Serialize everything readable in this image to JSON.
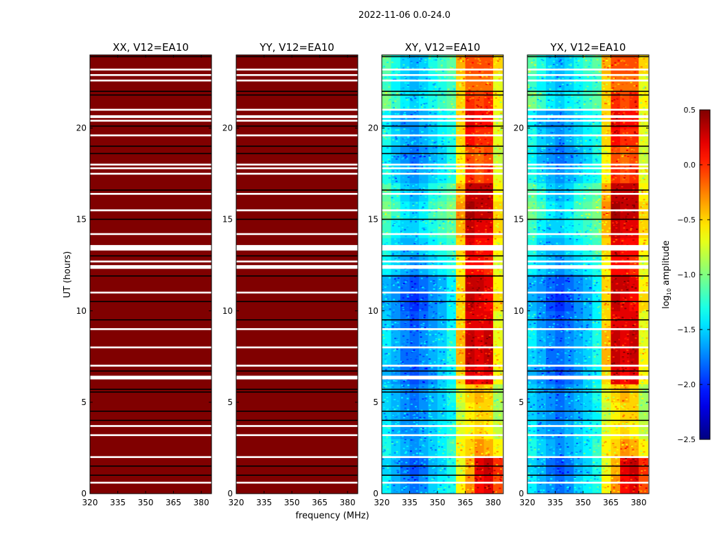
{
  "chart_data": {
    "type": "heatmap",
    "title": "2022-11-06 0.0-24.0",
    "xlabel": "frequency (MHz)",
    "ylabel": "UT (hours)",
    "xlim": [
      320,
      385.5
    ],
    "ylim": [
      0,
      24
    ],
    "xticks": [
      "320",
      "335",
      "350",
      "365",
      "380"
    ],
    "xtick_values": [
      320,
      335,
      350,
      365,
      380
    ],
    "yticks": [
      "0",
      "5",
      "10",
      "15",
      "20"
    ],
    "ytick_values": [
      0,
      5,
      10,
      15,
      20
    ],
    "colorbar": {
      "label": "log10 amplitude",
      "label_main": "log",
      "label_sub": "10",
      "label_rest": " amplitude",
      "range": [
        -2.5,
        0.5
      ],
      "ticks": [
        "0.5",
        "0.0",
        "−0.5",
        "−1.0",
        "−1.5",
        "−2.0",
        "−2.5"
      ],
      "tick_values": [
        0.5,
        0.0,
        -0.5,
        -1.0,
        -1.5,
        -2.0,
        -2.5
      ],
      "colormap": "jet"
    },
    "flagged_hours_white": [
      [
        23.15,
        23.25
      ],
      [
        22.85,
        22.95
      ],
      [
        22.55,
        22.65
      ],
      [
        20.95,
        21.05
      ],
      [
        20.55,
        20.7
      ],
      [
        20.35,
        20.45
      ],
      [
        19.55,
        19.65
      ],
      [
        17.95,
        18.05
      ],
      [
        17.75,
        17.85
      ],
      [
        17.45,
        17.55
      ],
      [
        16.35,
        16.45
      ],
      [
        15.45,
        15.55
      ],
      [
        14.15,
        14.25
      ],
      [
        13.3,
        13.6
      ],
      [
        12.65,
        12.75
      ],
      [
        12.3,
        12.5
      ],
      [
        10.95,
        11.05
      ],
      [
        8.95,
        9.05
      ],
      [
        7.95,
        8.05
      ],
      [
        6.95,
        7.05
      ],
      [
        6.25,
        6.45
      ],
      [
        3.65,
        3.75
      ],
      [
        3.15,
        3.25
      ],
      [
        1.95,
        2.05
      ],
      [
        0.55,
        0.65
      ]
    ],
    "no_data_hours_black": [
      23.9,
      22.0,
      21.8,
      20.1,
      19.0,
      18.6,
      16.6,
      15.0,
      13.0,
      11.9,
      10.5,
      9.5,
      6.7,
      5.7,
      5.55,
      4.5,
      4.0,
      1.5,
      1.0
    ],
    "freq_bins_mhz": [
      322.5,
      327.5,
      332.5,
      337.5,
      342.5,
      347.5,
      352.5,
      357.5,
      362.5,
      367.5,
      372.5,
      377.5,
      382.5
    ],
    "hour_bins": [
      0.5,
      1.5,
      2.5,
      3.5,
      4.5,
      5.5,
      6.5,
      7.5,
      8.5,
      9.5,
      10.5,
      11.5,
      12.5,
      13.5,
      14.5,
      15.5,
      16.5,
      17.5,
      18.5,
      19.5,
      20.5,
      21.5,
      22.5,
      23.5
    ],
    "panels": [
      {
        "title": "XX, V12=EA10",
        "uniform_value": 0.5
      },
      {
        "title": "YY, V12=EA10",
        "uniform_value": 0.5
      },
      {
        "title": "XY, V12=EA10",
        "values": [
          [
            -1.4,
            -1.6,
            -1.7,
            -1.8,
            -1.7,
            -1.5,
            -1.4,
            -1.3,
            -0.6,
            -0.3,
            0.1,
            0.2,
            -0.1
          ],
          [
            -1.5,
            -1.6,
            -1.8,
            -1.9,
            -1.8,
            -1.6,
            -1.5,
            -1.3,
            -0.7,
            -0.4,
            0.2,
            0.3,
            0.0
          ],
          [
            -1.3,
            -1.5,
            -1.6,
            -1.7,
            -1.6,
            -1.5,
            -1.4,
            -1.2,
            -0.6,
            -0.5,
            -0.3,
            -0.4,
            -0.6
          ],
          [
            -1.4,
            -1.6,
            -1.7,
            -1.7,
            -1.6,
            -1.5,
            -1.4,
            -1.3,
            -0.7,
            -0.6,
            -0.5,
            -0.6,
            -0.8
          ],
          [
            -1.5,
            -1.6,
            -1.7,
            -1.8,
            -1.7,
            -1.6,
            -1.5,
            -1.4,
            -0.8,
            -0.6,
            -0.5,
            -0.5,
            -0.9
          ],
          [
            -1.5,
            -1.6,
            -1.7,
            -1.8,
            -1.7,
            -1.6,
            -1.5,
            -1.3,
            -0.7,
            -0.5,
            -0.4,
            -0.5,
            -0.9
          ],
          [
            -1.6,
            -1.7,
            -1.8,
            -1.9,
            -1.8,
            -1.7,
            -1.5,
            -1.4,
            -0.5,
            0.2,
            0.1,
            0.2,
            -0.6
          ],
          [
            -1.5,
            -1.6,
            -1.8,
            -1.8,
            -1.7,
            -1.6,
            -1.5,
            -1.3,
            -0.4,
            0.3,
            0.2,
            0.3,
            -0.6
          ],
          [
            -1.4,
            -1.6,
            -1.7,
            -1.8,
            -1.7,
            -1.6,
            -1.5,
            -1.3,
            -0.4,
            0.3,
            0.2,
            0.3,
            -0.7
          ],
          [
            -1.5,
            -1.7,
            -1.8,
            -1.9,
            -1.8,
            -1.7,
            -1.6,
            -1.4,
            -0.5,
            0.2,
            0.2,
            0.2,
            -0.7
          ],
          [
            -1.6,
            -1.7,
            -1.9,
            -2.0,
            -1.9,
            -1.7,
            -1.6,
            -1.4,
            -0.5,
            0.3,
            0.2,
            0.1,
            -0.5
          ],
          [
            -1.6,
            -1.7,
            -1.8,
            -1.9,
            -1.8,
            -1.7,
            -1.6,
            -1.4,
            -0.5,
            0.3,
            0.3,
            0.2,
            -0.6
          ],
          [
            -1.4,
            -1.5,
            -1.6,
            -1.7,
            -1.6,
            -1.5,
            -1.4,
            -1.3,
            -0.6,
            0.1,
            0.1,
            0.0,
            -0.7
          ],
          [
            -1.3,
            -1.5,
            -1.6,
            -1.6,
            -1.5,
            -1.4,
            -1.3,
            -1.2,
            -0.5,
            0.2,
            0.1,
            0.1,
            -0.6
          ],
          [
            -1.2,
            -1.4,
            -1.5,
            -1.5,
            -1.4,
            -1.3,
            -1.2,
            -1.1,
            -0.4,
            0.3,
            0.2,
            0.2,
            -0.5
          ],
          [
            -1.0,
            -1.2,
            -1.4,
            -1.5,
            -1.4,
            -1.2,
            -1.1,
            -1.0,
            -0.3,
            0.4,
            0.3,
            0.3,
            -0.5
          ],
          [
            -1.1,
            -1.3,
            -1.5,
            -1.6,
            -1.5,
            -1.3,
            -1.2,
            -1.1,
            -0.4,
            0.3,
            0.3,
            0.3,
            -0.6
          ],
          [
            -1.3,
            -1.5,
            -1.6,
            -1.7,
            -1.6,
            -1.5,
            -1.4,
            -1.3,
            -0.6,
            0.0,
            -0.1,
            0.0,
            -0.7
          ],
          [
            -1.4,
            -1.6,
            -1.7,
            -1.8,
            -1.7,
            -1.6,
            -1.5,
            -1.3,
            -0.6,
            -0.1,
            -0.2,
            -0.1,
            -0.8
          ],
          [
            -1.3,
            -1.5,
            -1.6,
            -1.7,
            -1.6,
            -1.5,
            -1.4,
            -1.3,
            -0.5,
            0.1,
            0.0,
            0.0,
            -0.7
          ],
          [
            -1.4,
            -1.6,
            -1.7,
            -1.7,
            -1.6,
            -1.5,
            -1.4,
            -1.3,
            -0.5,
            0.2,
            0.1,
            0.1,
            -0.7
          ],
          [
            -1.0,
            -1.2,
            -1.4,
            -1.5,
            -1.4,
            -1.3,
            -1.2,
            -1.1,
            -0.5,
            0.0,
            -0.1,
            0.0,
            -0.6
          ],
          [
            -1.2,
            -1.4,
            -1.5,
            -1.6,
            -1.5,
            -1.4,
            -1.3,
            -1.2,
            -0.5,
            -0.2,
            -0.2,
            -0.2,
            -0.7
          ],
          [
            -1.1,
            -1.3,
            -1.5,
            -1.6,
            -1.5,
            -1.3,
            -1.2,
            -1.1,
            -0.4,
            -0.1,
            -0.1,
            -0.1,
            -0.5
          ]
        ]
      },
      {
        "title": "YX, V12=EA10",
        "values": [
          [
            -1.4,
            -1.6,
            -1.7,
            -1.8,
            -1.7,
            -1.5,
            -1.4,
            -1.3,
            -0.6,
            -0.3,
            0.1,
            0.2,
            -0.1
          ],
          [
            -1.5,
            -1.6,
            -1.8,
            -1.9,
            -1.8,
            -1.6,
            -1.5,
            -1.3,
            -0.7,
            -0.4,
            0.2,
            0.3,
            0.0
          ],
          [
            -1.3,
            -1.5,
            -1.6,
            -1.7,
            -1.6,
            -1.5,
            -1.4,
            -1.2,
            -0.6,
            -0.5,
            -0.3,
            -0.4,
            -0.6
          ],
          [
            -1.4,
            -1.6,
            -1.7,
            -1.7,
            -1.6,
            -1.5,
            -1.4,
            -1.3,
            -0.7,
            -0.6,
            -0.5,
            -0.6,
            -0.8
          ],
          [
            -1.5,
            -1.6,
            -1.7,
            -1.8,
            -1.7,
            -1.6,
            -1.5,
            -1.4,
            -0.8,
            -0.6,
            -0.5,
            -0.5,
            -0.9
          ],
          [
            -1.5,
            -1.6,
            -1.7,
            -1.8,
            -1.7,
            -1.6,
            -1.5,
            -1.3,
            -0.7,
            -0.5,
            -0.4,
            -0.5,
            -0.9
          ],
          [
            -1.6,
            -1.7,
            -1.8,
            -1.9,
            -1.8,
            -1.7,
            -1.5,
            -1.4,
            -0.5,
            0.2,
            0.1,
            0.2,
            -0.6
          ],
          [
            -1.5,
            -1.6,
            -1.8,
            -1.8,
            -1.7,
            -1.6,
            -1.5,
            -1.3,
            -0.4,
            0.3,
            0.2,
            0.3,
            -0.6
          ],
          [
            -1.4,
            -1.6,
            -1.7,
            -1.8,
            -1.7,
            -1.6,
            -1.5,
            -1.3,
            -0.4,
            0.3,
            0.2,
            0.3,
            -0.7
          ],
          [
            -1.5,
            -1.7,
            -1.8,
            -1.9,
            -1.8,
            -1.7,
            -1.6,
            -1.4,
            -0.5,
            0.2,
            0.2,
            0.2,
            -0.7
          ],
          [
            -1.6,
            -1.7,
            -1.9,
            -2.0,
            -1.9,
            -1.7,
            -1.6,
            -1.4,
            -0.5,
            0.3,
            0.2,
            0.1,
            -0.5
          ],
          [
            -1.6,
            -1.7,
            -1.8,
            -1.9,
            -1.8,
            -1.7,
            -1.6,
            -1.4,
            -0.5,
            0.3,
            0.3,
            0.2,
            -0.6
          ],
          [
            -1.4,
            -1.5,
            -1.6,
            -1.7,
            -1.6,
            -1.5,
            -1.4,
            -1.3,
            -0.6,
            0.1,
            0.1,
            0.0,
            -0.7
          ],
          [
            -1.3,
            -1.5,
            -1.6,
            -1.6,
            -1.5,
            -1.4,
            -1.3,
            -1.2,
            -0.5,
            0.2,
            0.1,
            0.1,
            -0.6
          ],
          [
            -1.2,
            -1.4,
            -1.5,
            -1.5,
            -1.4,
            -1.3,
            -1.2,
            -1.1,
            -0.4,
            0.3,
            0.2,
            0.2,
            -0.5
          ],
          [
            -1.0,
            -1.2,
            -1.4,
            -1.5,
            -1.4,
            -1.2,
            -1.1,
            -1.0,
            -0.3,
            0.4,
            0.3,
            0.3,
            -0.5
          ],
          [
            -1.1,
            -1.3,
            -1.5,
            -1.6,
            -1.5,
            -1.3,
            -1.2,
            -1.1,
            -0.4,
            0.3,
            0.3,
            0.3,
            -0.6
          ],
          [
            -1.3,
            -1.5,
            -1.6,
            -1.7,
            -1.6,
            -1.5,
            -1.4,
            -1.3,
            -0.6,
            0.0,
            -0.1,
            0.0,
            -0.7
          ],
          [
            -1.4,
            -1.6,
            -1.7,
            -1.8,
            -1.7,
            -1.6,
            -1.5,
            -1.3,
            -0.6,
            -0.1,
            -0.2,
            -0.1,
            -0.8
          ],
          [
            -1.3,
            -1.5,
            -1.6,
            -1.7,
            -1.6,
            -1.5,
            -1.4,
            -1.3,
            -0.5,
            0.1,
            0.0,
            0.0,
            -0.7
          ],
          [
            -1.4,
            -1.6,
            -1.7,
            -1.7,
            -1.6,
            -1.5,
            -1.4,
            -1.3,
            -0.5,
            0.2,
            0.1,
            0.1,
            -0.7
          ],
          [
            -1.0,
            -1.2,
            -1.4,
            -1.5,
            -1.4,
            -1.3,
            -1.2,
            -1.1,
            -0.5,
            0.0,
            -0.1,
            0.0,
            -0.6
          ],
          [
            -1.2,
            -1.4,
            -1.5,
            -1.6,
            -1.5,
            -1.4,
            -1.3,
            -1.2,
            -0.5,
            -0.2,
            -0.2,
            -0.2,
            -0.7
          ],
          [
            -1.1,
            -1.3,
            -1.5,
            -1.6,
            -1.5,
            -1.3,
            -1.2,
            -1.1,
            -0.4,
            -0.1,
            -0.1,
            -0.1,
            -0.5
          ]
        ]
      }
    ]
  }
}
